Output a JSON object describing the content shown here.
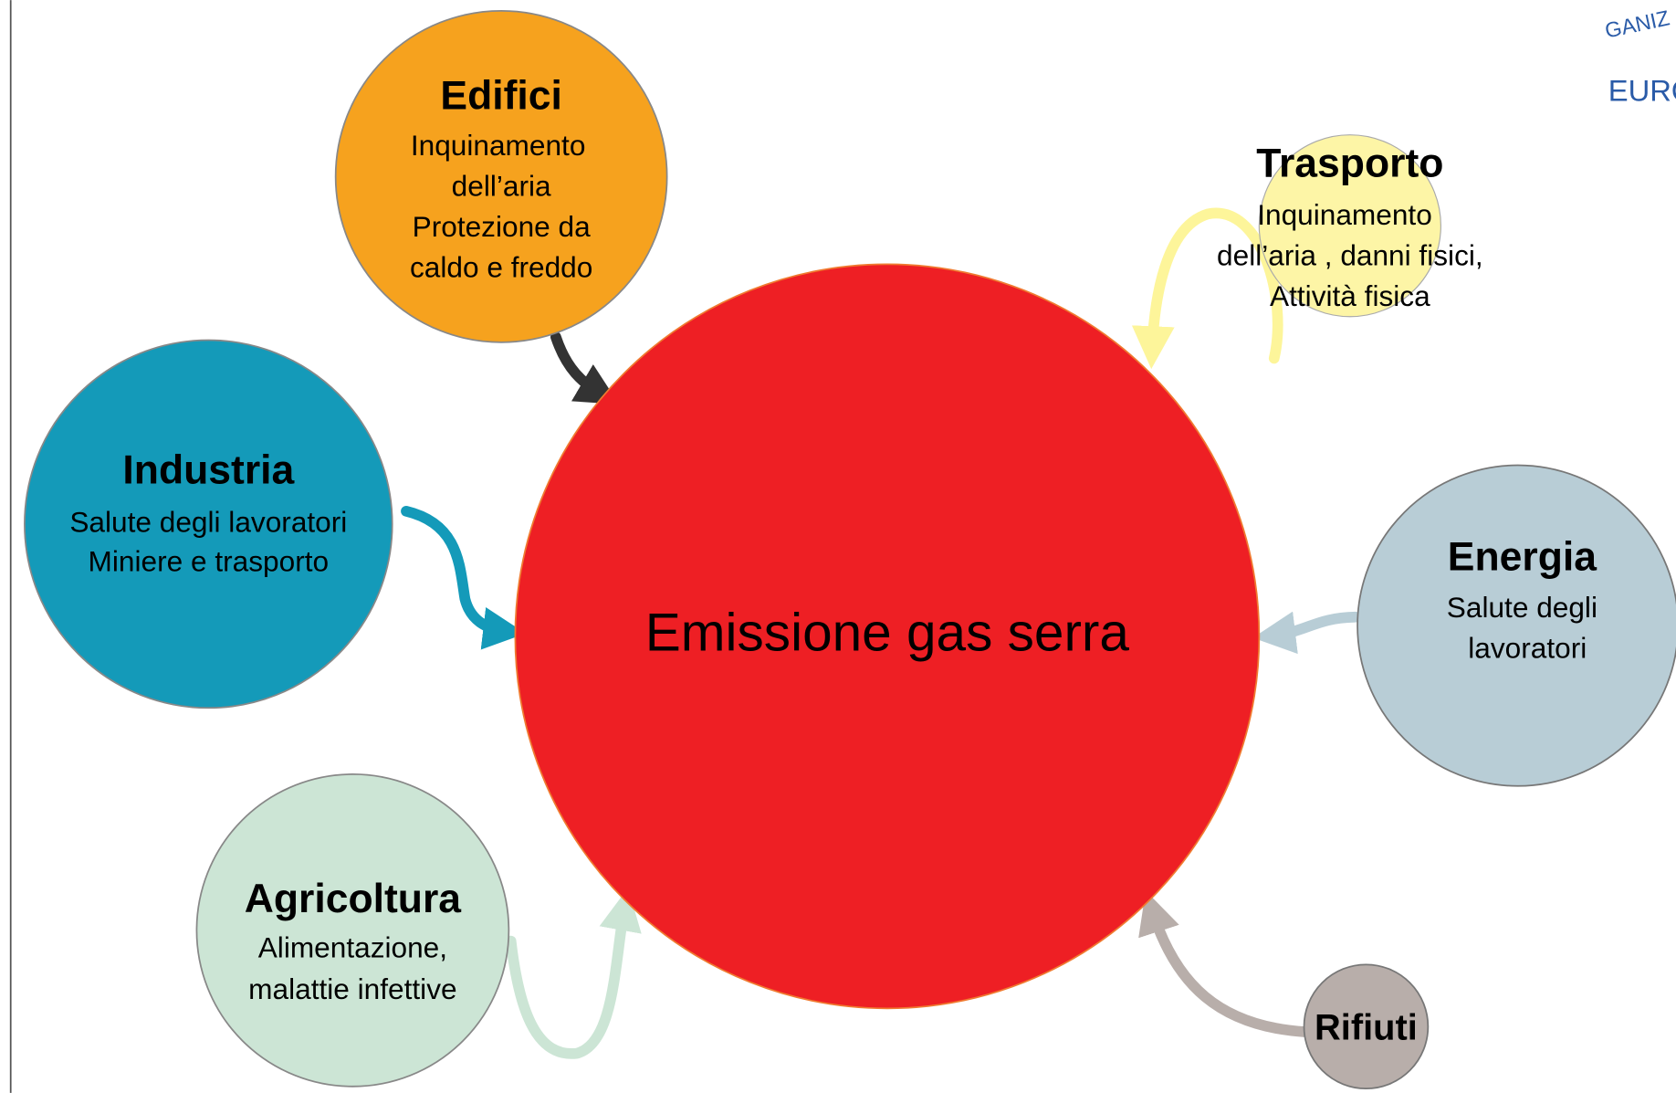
{
  "logo": {
    "arc_text": "GANIZ",
    "text": "EURO"
  },
  "center": {
    "label": "Emissione gas serra"
  },
  "nodes": [
    {
      "title": "Edifici",
      "lines": [
        "Inquinamento",
        "dell’aria",
        "Protezione da",
        "caldo e freddo"
      ]
    },
    {
      "title": "Trasporto",
      "lines": [
        "Inquinamento",
        "dell’aria , danni fisici,",
        "Attività fisica"
      ]
    },
    {
      "title": "Industria",
      "lines": [
        "Salute degli lavoratori",
        "Miniere e trasporto"
      ]
    },
    {
      "title": "Energia",
      "lines": [
        "Salute degli",
        "lavoratori"
      ]
    },
    {
      "title": "Agricoltura",
      "lines": [
        "Alimentazione,",
        "malattie infettive"
      ]
    },
    {
      "title": "Rifiuti",
      "lines": []
    }
  ]
}
